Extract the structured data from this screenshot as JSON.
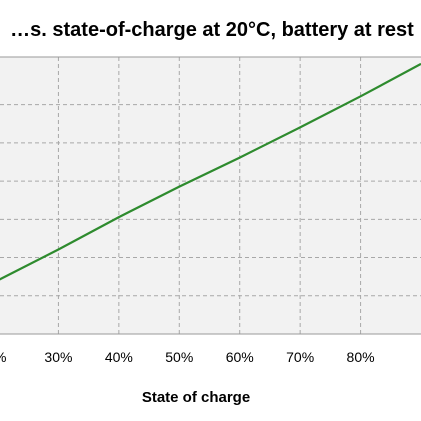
{
  "chart_data": {
    "type": "line",
    "title": "…s. state-of-charge at 20°C, battery at rest",
    "xlabel": "State of charge",
    "ylabel": "",
    "x_ticks": [
      "30%",
      "40%",
      "50%",
      "60%",
      "70%",
      "80%"
    ],
    "x_tick_partial": "%",
    "xlim": [
      20,
      90
    ],
    "ylim": [
      0,
      1
    ],
    "grid": true,
    "colors": {
      "plot_bg": "#f2f2f2",
      "grid": "#a8a8a8",
      "frame": "#999999",
      "line": "#2e8b2e"
    },
    "series": [
      {
        "x": [
          20,
          30,
          40,
          50,
          60,
          70,
          80,
          90
        ],
        "y": [
          0.194,
          0.305,
          0.422,
          0.532,
          0.637,
          0.746,
          0.858,
          0.975
        ]
      }
    ]
  }
}
